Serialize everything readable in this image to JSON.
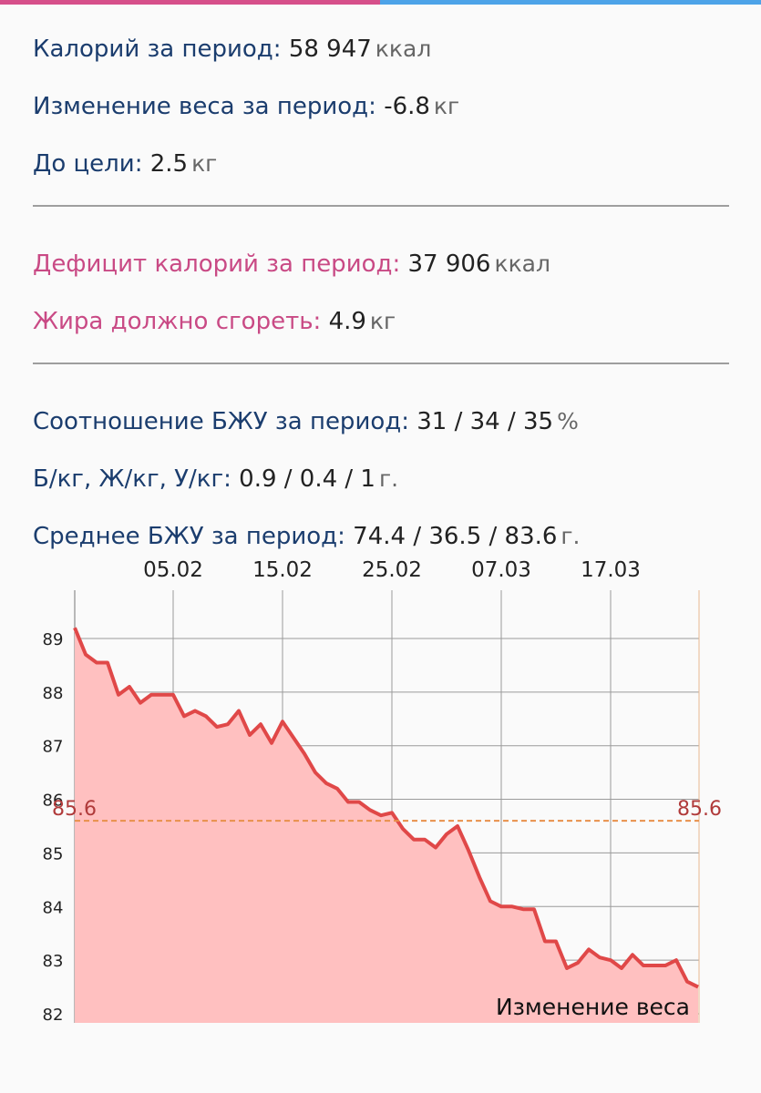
{
  "stats": {
    "sections": [
      {
        "color": "#1b3d6e",
        "rows": [
          {
            "label": "Калорий за период:",
            "value": "58 947",
            "unit": "ккал"
          },
          {
            "label": "Изменение веса за период:",
            "value": "-6.8",
            "unit": "кг"
          },
          {
            "label": "До цели:",
            "value": "2.5",
            "unit": "кг"
          }
        ]
      },
      {
        "color": "#c94a85",
        "rows": [
          {
            "label": "Дефицит калорий за период:",
            "value": "37 906",
            "unit": "ккал"
          },
          {
            "label": "Жира должно сгореть:",
            "value": "4.9",
            "unit": "кг"
          }
        ]
      },
      {
        "color": "#1b3d6e",
        "rows": [
          {
            "label": "Соотношение БЖУ за период:",
            "value": "31 / 34 / 35",
            "unit": "%"
          },
          {
            "label": "Б/кг, Ж/кг, У/кг:",
            "value": "0.9 / 0.4 / 1",
            "unit": "г."
          },
          {
            "label": "Среднее БЖУ за период:",
            "value": "74.4 / 36.5 / 83.6",
            "unit": "г."
          }
        ]
      }
    ]
  },
  "chart_data": {
    "type": "area",
    "x": [
      "27.01",
      "28.01",
      "29.01",
      "30.01",
      "31.01",
      "01.02",
      "02.02",
      "03.02",
      "04.02",
      "05.02",
      "06.02",
      "07.02",
      "08.02",
      "09.02",
      "10.02",
      "11.02",
      "12.02",
      "13.02",
      "14.02",
      "15.02",
      "16.02",
      "17.02",
      "18.02",
      "19.02",
      "20.02",
      "21.02",
      "22.02",
      "23.02",
      "24.02",
      "25.02",
      "26.02",
      "27.02",
      "28.02",
      "01.03",
      "02.03",
      "03.03",
      "04.03",
      "05.03",
      "06.03",
      "07.03",
      "08.03",
      "09.03",
      "10.03",
      "11.03",
      "12.03",
      "13.03",
      "14.03",
      "15.03",
      "16.03",
      "17.03",
      "18.03",
      "19.03",
      "20.03",
      "21.03",
      "22.03",
      "23.03",
      "24.03",
      "25.03"
    ],
    "series": [
      {
        "name": "Изменение веса",
        "color": "#e04848",
        "fill": "#ffc0c0",
        "values": [
          89.2,
          88.7,
          88.55,
          88.55,
          87.95,
          88.1,
          87.8,
          87.95,
          87.95,
          87.95,
          87.55,
          87.65,
          87.55,
          87.35,
          87.4,
          87.65,
          87.2,
          87.4,
          87.05,
          87.45,
          87.15,
          86.85,
          86.5,
          86.3,
          86.2,
          85.95,
          85.95,
          85.8,
          85.7,
          85.75,
          85.45,
          85.25,
          85.25,
          85.1,
          85.35,
          85.5,
          85.05,
          84.55,
          84.1,
          84.0,
          84.0,
          83.95,
          83.95,
          83.35,
          83.35,
          82.85,
          82.95,
          83.2,
          83.05,
          83.0,
          82.85,
          83.1,
          82.9,
          82.9,
          82.9,
          83.0,
          82.6,
          82.5
        ]
      }
    ],
    "xticks": [
      "05.02",
      "15.02",
      "25.02",
      "07.03",
      "17.03"
    ],
    "ylim": [
      81.83,
      89.9
    ],
    "yticks": [
      82,
      83,
      84,
      85,
      86,
      87,
      88,
      89
    ],
    "target_line": {
      "value": 85.6,
      "color": "#e8904a",
      "label_color": "#b03a3a"
    },
    "grid": true,
    "legend": "bottom-right"
  }
}
